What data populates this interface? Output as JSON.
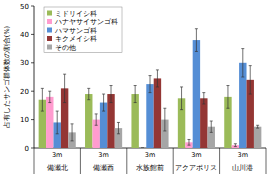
{
  "chart_data": {
    "type": "bar",
    "y_label": "占有したサンゴ群体数の割合(%)",
    "categories": [
      "備瀬北",
      "備瀬西",
      "水族館前",
      "アクアポリス",
      "山川港"
    ],
    "depth_labels": [
      "3m",
      "3m",
      "3m",
      "3m",
      "3m"
    ],
    "ylim": [
      0,
      50
    ],
    "yticks": [
      0,
      10,
      20,
      30,
      40,
      50
    ],
    "grid": false,
    "legend": "top-left",
    "series": [
      {
        "name": "ミドリイシ科",
        "color": "#9bbb59",
        "values": [
          17,
          19,
          19,
          17.5,
          18
        ],
        "errors": [
          4,
          2,
          3,
          4,
          4
        ]
      },
      {
        "name": "ハナヤサイサンゴ科",
        "color": "#ff9ccf",
        "values": [
          18,
          10,
          0,
          2,
          1
        ],
        "errors": [
          2,
          2,
          0,
          1,
          0.5
        ]
      },
      {
        "name": "ハマサンゴ科",
        "color": "#558ed5",
        "values": [
          9,
          16,
          22.5,
          38,
          30
        ],
        "errors": [
          4,
          3,
          3,
          4,
          5
        ]
      },
      {
        "name": "キクメイシ科",
        "color": "#943634",
        "values": [
          21,
          19,
          24.5,
          17.5,
          24
        ],
        "errors": [
          5,
          3,
          3,
          2,
          5
        ]
      },
      {
        "name": "その他",
        "color": "#a6a6a6",
        "values": [
          5.5,
          7,
          10,
          7.5,
          7.5
        ],
        "errors": [
          3,
          2,
          4,
          2,
          0.5
        ]
      }
    ]
  }
}
